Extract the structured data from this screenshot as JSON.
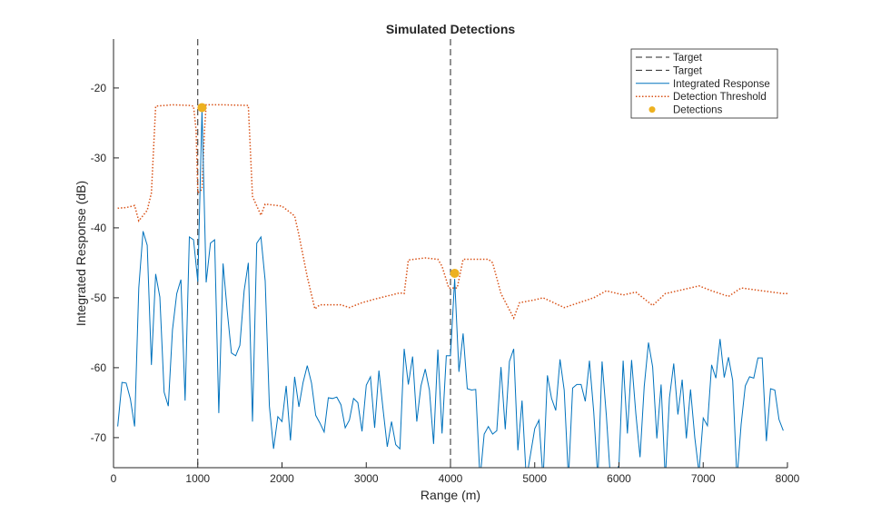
{
  "chart_data": {
    "type": "line",
    "title": "Simulated Detections",
    "xlabel": "Range (m)",
    "ylabel": "Integrated Response (dB)",
    "xlim": [
      0,
      8000
    ],
    "ylim": [
      -74.3,
      -13
    ],
    "xticks": [
      0,
      1000,
      2000,
      3000,
      4000,
      5000,
      6000,
      7000,
      8000
    ],
    "yticks": [
      -20,
      -30,
      -40,
      -50,
      -60,
      -70
    ],
    "grid": false,
    "legend_placement": "top-right",
    "colors": {
      "response": "#0072BD",
      "threshold": "#D95319",
      "detections": "#EDB120",
      "target": "#262626"
    },
    "targets": [
      {
        "name": "Target",
        "x": 1000
      },
      {
        "name": "Target",
        "x": 4000
      }
    ],
    "response": {
      "name": "Integrated Response",
      "x_start": 50,
      "x_step": 50,
      "values": [
        -68.4,
        -62.1,
        -62.2,
        -64.5,
        -68.4,
        -48.6,
        -40.5,
        -42.5,
        -59.6,
        -46.6,
        -49.9,
        -63.5,
        -65.5,
        -54.6,
        -49.4,
        -47.4,
        -64.7,
        -41.3,
        -41.7,
        -47.7,
        -23.2,
        -47.8,
        -42.2,
        -41.7,
        -66.5,
        -45.1,
        -51.9,
        -57.9,
        -58.3,
        -56.8,
        -49.0,
        -45.0,
        -67.7,
        -42.2,
        -41.3,
        -47.6,
        -65.5,
        -71.6,
        -67.0,
        -67.7,
        -62.6,
        -70.4,
        -61.3,
        -65.6,
        -62.1,
        -59.7,
        -62.2,
        -66.8,
        -67.9,
        -69.2,
        -64.3,
        -64.4,
        -64.2,
        -65.3,
        -68.6,
        -67.5,
        -64.4,
        -65.0,
        -69.1,
        -62.5,
        -61.3,
        -68.6,
        -60.4,
        -66.0,
        -71.3,
        -67.7,
        -71.0,
        -71.6,
        -57.3,
        -62.4,
        -58.4,
        -67.7,
        -62.6,
        -60.2,
        -63.2,
        -70.9,
        -57.4,
        -69.4,
        -58.3,
        -58.3,
        -47.3,
        -60.6,
        -55.1,
        -63.0,
        -63.2,
        -63.1,
        -76.0,
        -69.5,
        -68.4,
        -69.5,
        -69.0,
        -59.9,
        -68.8,
        -59.1,
        -57.3,
        -71.8,
        -64.7,
        -76.0,
        -72.4,
        -68.7,
        -67.5,
        -76.0,
        -61.1,
        -64.4,
        -66.1,
        -58.8,
        -63.2,
        -76.0,
        -62.9,
        -62.4,
        -62.4,
        -64.8,
        -59.0,
        -66.3,
        -76.0,
        -59.1,
        -66.8,
        -76.0,
        -75.0,
        -74.0,
        -59.0,
        -69.4,
        -58.9,
        -66.6,
        -72.8,
        -62.7,
        -56.4,
        -59.9,
        -70.1,
        -62.4,
        -76.0,
        -64.3,
        -59.4,
        -66.7,
        -61.7,
        -70.1,
        -63.1,
        -70.0,
        -75.0,
        -67.2,
        -68.3,
        -59.6,
        -61.5,
        -55.9,
        -61.4,
        -58.5,
        -61.8,
        -76.0,
        -68.1,
        -62.6,
        -61.3,
        -61.5,
        -58.6,
        -58.6,
        -70.5,
        -63.0,
        -63.2,
        -67.4,
        -69.0
      ]
    },
    "threshold": {
      "name": "Detection Threshold",
      "x": [
        50,
        150,
        250,
        300,
        400,
        450,
        500,
        700,
        900,
        950,
        980,
        1000,
        1050,
        1080,
        1100,
        1300,
        1600,
        1650,
        1750,
        1800,
        2000,
        2150,
        2200,
        2300,
        2390,
        2450,
        2700,
        2800,
        2950,
        3100,
        3300,
        3400,
        3450,
        3500,
        3700,
        3850,
        3900,
        3980,
        4080,
        4150,
        4450,
        4500,
        4600,
        4750,
        4820,
        5000,
        5100,
        5350,
        5500,
        5700,
        5850,
        5950,
        6050,
        6200,
        6400,
        6550,
        6700,
        6950,
        7100,
        7300,
        7450,
        7700,
        7950,
        8000
      ],
      "values": [
        -37.2,
        -37.1,
        -36.8,
        -39.0,
        -37.5,
        -35.0,
        -22.6,
        -22.4,
        -22.5,
        -22.6,
        -26.0,
        -35.0,
        -34.5,
        -26.0,
        -22.4,
        -22.4,
        -22.5,
        -35.5,
        -38.2,
        -36.6,
        -36.9,
        -38.3,
        -41.0,
        -47.0,
        -51.6,
        -51.0,
        -51.0,
        -51.4,
        -50.7,
        -50.2,
        -49.6,
        -49.3,
        -49.4,
        -44.6,
        -44.3,
        -44.5,
        -45.5,
        -48.6,
        -48.6,
        -44.5,
        -44.5,
        -45.0,
        -49.4,
        -52.9,
        -50.7,
        -50.3,
        -50.0,
        -51.4,
        -50.8,
        -50.0,
        -49.0,
        -49.3,
        -49.6,
        -49.2,
        -51.1,
        -49.4,
        -49.0,
        -48.3,
        -49.0,
        -49.8,
        -48.6,
        -49.0,
        -49.4,
        -49.4
      ]
    },
    "detections": {
      "name": "Detections",
      "points": [
        {
          "x": 1050,
          "y": -22.8
        },
        {
          "x": 4050,
          "y": -46.5
        }
      ]
    },
    "legend": [
      "Target",
      "Target",
      "Integrated Response",
      "Detection Threshold",
      "Detections"
    ]
  }
}
